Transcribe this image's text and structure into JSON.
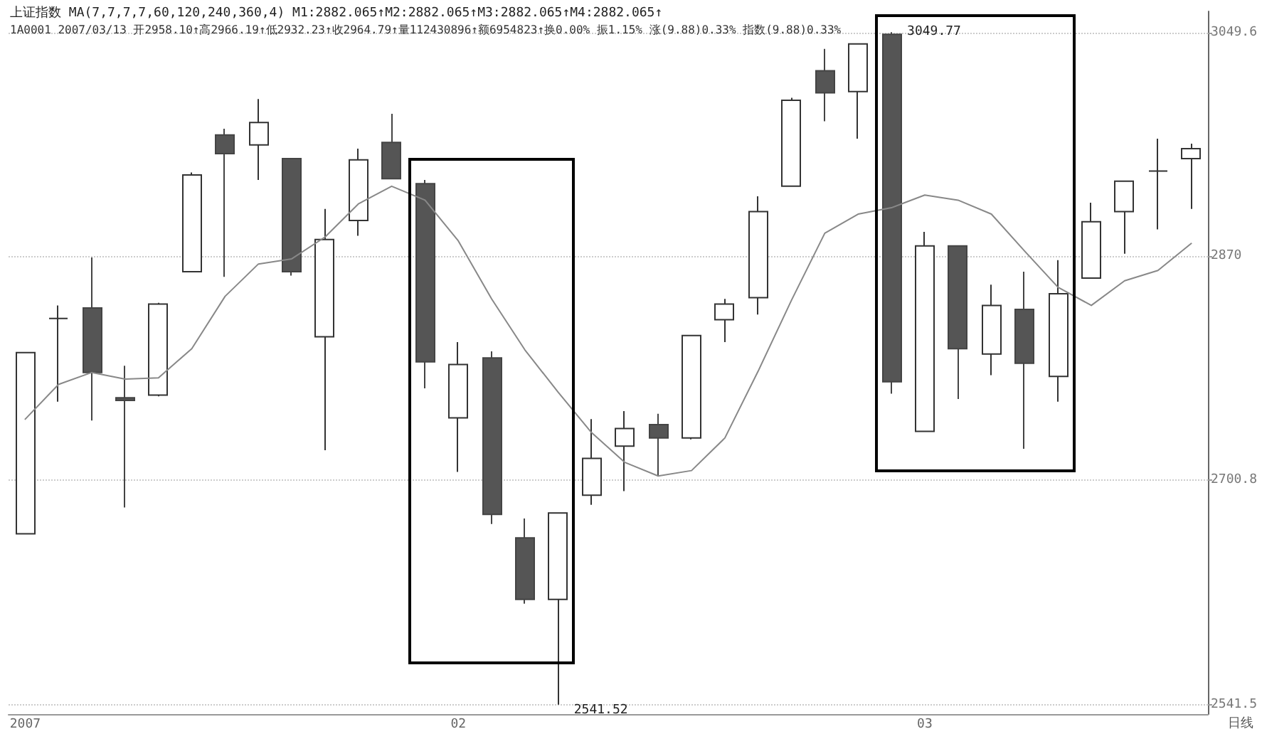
{
  "chart_data": {
    "type": "candlestick",
    "title": "上证指数 MA(7,7,7,7,60,120,240,360,4) M1:2882.065↑M2:2882.065↑M3:2882.065↑M4:2882.065↑",
    "subtitle": "1A0001 2007/03/13 开2958.10↑高2966.19↑低2932.23↑收2964.79↑量112430896↑额6954823↑换0.00% 振1.15% 涨(9.88)0.33% 指数(9.88)0.33%",
    "categories": [
      "2007",
      null,
      null,
      null,
      null,
      null,
      null,
      null,
      null,
      null,
      null,
      null,
      null,
      "02",
      null,
      null,
      null,
      null,
      null,
      null,
      null,
      null,
      null,
      null,
      null,
      null,
      null,
      "03",
      null,
      null,
      null,
      null,
      null,
      null,
      null,
      null
    ],
    "ohlc": [
      [
        2662,
        2796,
        2662,
        2796
      ],
      [
        2822,
        2832,
        2759,
        2822
      ],
      [
        2830,
        2869,
        2745,
        2781
      ],
      [
        2762,
        2786,
        2681,
        2760
      ],
      [
        2764,
        2834,
        2763,
        2833
      ],
      [
        2858,
        2936,
        2858,
        2934
      ],
      [
        2966,
        2971,
        2854,
        2951
      ],
      [
        2958,
        2995,
        2930,
        2976
      ],
      [
        2947,
        2947,
        2855,
        2858
      ],
      [
        2808,
        2907,
        2723,
        2883
      ],
      [
        2898,
        2955,
        2886,
        2946
      ],
      [
        2960,
        2983,
        2931,
        2931
      ],
      [
        2927,
        2930,
        2769,
        2789
      ],
      [
        2747,
        2804,
        2707,
        2787
      ],
      [
        2792,
        2797,
        2669,
        2676
      ],
      [
        2659,
        2673,
        2612,
        2615
      ],
      [
        2615,
        2677,
        2541.52,
        2677
      ],
      [
        2690,
        2746,
        2683,
        2717
      ],
      [
        2726,
        2752,
        2693,
        2739
      ],
      [
        2742,
        2750,
        2704,
        2732
      ],
      [
        2732,
        2809,
        2731,
        2809
      ],
      [
        2821,
        2837,
        2804,
        2833
      ],
      [
        2838,
        2917,
        2825,
        2905
      ],
      [
        2925,
        2996,
        2925,
        2994
      ],
      [
        3018,
        3036,
        2977,
        3000
      ],
      [
        3001,
        3040,
        2963,
        3040
      ],
      [
        3048,
        3049.77,
        2765,
        2774
      ],
      [
        2737,
        2889,
        2737,
        2878
      ],
      [
        2878,
        2878,
        2761,
        2799
      ],
      [
        2795,
        2848,
        2779,
        2832
      ],
      [
        2829,
        2858,
        2724,
        2788
      ],
      [
        2778,
        2867,
        2759,
        2841
      ],
      [
        2853,
        2912,
        2853,
        2897
      ],
      [
        2905,
        2929,
        2872,
        2929
      ],
      [
        2937,
        2963,
        2891,
        2937
      ],
      [
        2947,
        2959,
        2907,
        2955
      ]
    ],
    "series": [
      {
        "type": "line",
        "color": "#888888",
        "values": [
          2746,
          2772,
          2781,
          2776,
          2777,
          2799,
          2839,
          2864,
          2868,
          2885,
          2911,
          2925,
          2914,
          2882,
          2837,
          2798,
          2766,
          2736,
          2714,
          2704,
          2708,
          2732,
          2782,
          2836,
          2888,
          2903,
          2908,
          2918,
          2914,
          2903,
          2874,
          2846,
          2832,
          2851,
          2859,
          2880
        ]
      }
    ],
    "log": true,
    "ylim": [
      2535,
      3067
    ],
    "yticks": [
      2541.5,
      2700.8,
      2870.0,
      3049.6
    ],
    "grid": "y",
    "marker": "none",
    "annotations": [
      "3049.77",
      "2541.52",
      "日线"
    ]
  }
}
